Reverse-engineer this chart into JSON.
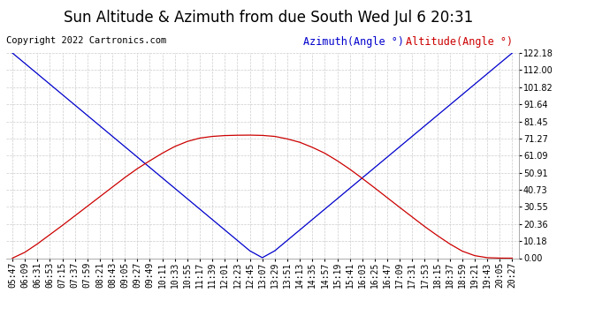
{
  "title": "Sun Altitude & Azimuth from due South Wed Jul 6 20:31",
  "copyright": "Copyright 2022 Cartronics.com",
  "legend_azimuth": "Azimuth(Angle °)",
  "legend_altitude": "Altitude(Angle °)",
  "yticks": [
    0.0,
    10.18,
    20.36,
    30.55,
    40.73,
    50.91,
    61.09,
    71.27,
    81.45,
    91.64,
    101.82,
    112.0,
    122.18
  ],
  "ymax": 122.18,
  "ymin": 0.0,
  "time_labels": [
    "05:47",
    "06:09",
    "06:31",
    "06:53",
    "07:15",
    "07:37",
    "07:59",
    "08:21",
    "08:43",
    "09:05",
    "09:27",
    "09:49",
    "10:11",
    "10:33",
    "10:55",
    "11:17",
    "11:39",
    "12:01",
    "12:23",
    "12:45",
    "13:07",
    "13:29",
    "13:51",
    "14:13",
    "14:35",
    "14:57",
    "15:19",
    "15:41",
    "16:03",
    "16:25",
    "16:47",
    "17:09",
    "17:31",
    "17:53",
    "18:15",
    "18:37",
    "18:59",
    "19:21",
    "19:43",
    "20:05",
    "20:27"
  ],
  "azimuth_values": [
    122.18,
    116.0,
    109.8,
    103.6,
    97.4,
    91.2,
    85.0,
    78.8,
    72.6,
    66.4,
    60.2,
    54.0,
    47.8,
    41.6,
    35.4,
    29.2,
    23.0,
    16.8,
    10.6,
    4.4,
    0.3,
    4.4,
    10.6,
    16.8,
    23.0,
    29.2,
    35.4,
    41.6,
    47.8,
    54.0,
    60.2,
    66.4,
    72.6,
    78.8,
    85.0,
    91.2,
    97.4,
    103.6,
    109.8,
    116.0,
    122.18
  ],
  "altitude_values": [
    0.0,
    3.5,
    8.5,
    14.0,
    19.5,
    25.2,
    30.9,
    36.6,
    42.3,
    48.0,
    53.3,
    58.0,
    62.5,
    66.5,
    69.5,
    71.5,
    72.5,
    73.0,
    73.2,
    73.27,
    73.1,
    72.5,
    71.0,
    69.0,
    66.0,
    62.5,
    58.0,
    53.0,
    47.5,
    41.8,
    36.0,
    30.2,
    24.5,
    18.8,
    13.5,
    8.5,
    4.2,
    1.5,
    0.3,
    0.05,
    0.0
  ],
  "azimuth_color": "#0000cc",
  "altitude_color": "#cc0000",
  "bg_color": "#ffffff",
  "grid_color": "#cccccc",
  "title_fontsize": 12,
  "tick_fontsize": 7,
  "legend_fontsize": 8.5,
  "copyright_fontsize": 7.5
}
